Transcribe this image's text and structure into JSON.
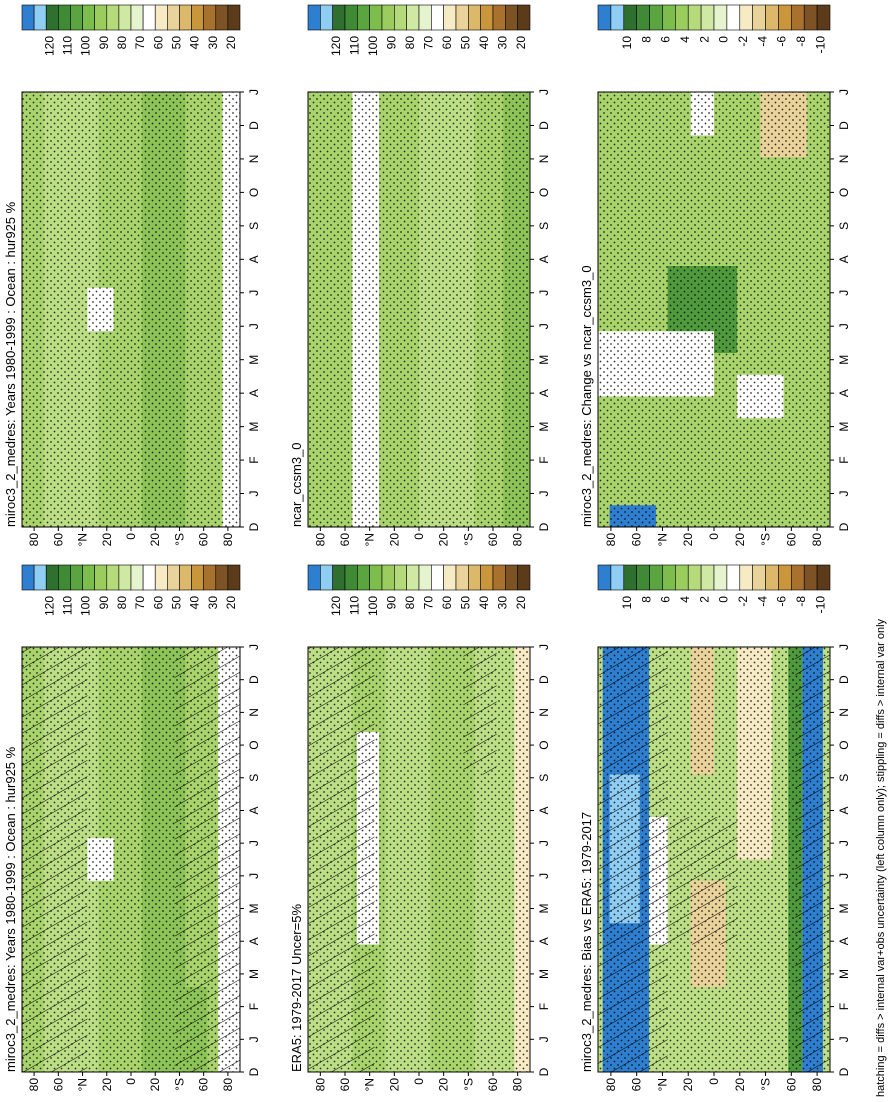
{
  "panels": [
    {
      "title": "miroc3_2_medres: Years 1980-1999 : Ocean : hur925 %",
      "colorbar_labels": [
        "120",
        "110",
        "100",
        "90",
        "80",
        "70",
        "60",
        "50",
        "40",
        "30",
        "20"
      ]
    },
    {
      "title": "miroc3_2_medres: Years 1980-1999 : Ocean : hur925 %",
      "colorbar_labels": [
        "120",
        "110",
        "100",
        "90",
        "80",
        "70",
        "60",
        "50",
        "40",
        "30",
        "20"
      ]
    },
    {
      "title": "ERA5: 1979-2017 Uncer=5%",
      "colorbar_labels": [
        "120",
        "110",
        "100",
        "90",
        "80",
        "70",
        "60",
        "50",
        "40",
        "30",
        "20"
      ]
    },
    {
      "title": "ncar_ccsm3_0",
      "colorbar_labels": [
        "120",
        "110",
        "100",
        "90",
        "80",
        "70",
        "60",
        "50",
        "40",
        "30",
        "20"
      ]
    },
    {
      "title": "miroc3_2_medres: Bias vs ERA5: 1979-2017",
      "colorbar_labels": [
        "10",
        "8",
        "6",
        "4",
        "2",
        "0",
        "-2",
        "-4",
        "-6",
        "-8",
        "-10"
      ]
    },
    {
      "title": "miroc3_2_medres: Change vs ncar_ccsm3_0",
      "colorbar_labels": [
        "10",
        "8",
        "6",
        "4",
        "2",
        "0",
        "-2",
        "-4",
        "-6",
        "-8",
        "-10"
      ]
    }
  ],
  "lat_labels": [
    "80",
    "60",
    "°N",
    "20",
    "0",
    "20",
    "°S",
    "60",
    "80"
  ],
  "month_labels": [
    "D",
    "J",
    "F",
    "M",
    "A",
    "M",
    "J",
    "J",
    "A",
    "S",
    "O",
    "N",
    "D",
    "J"
  ],
  "footnote": "hatching = diffs > internal var+obs uncertainty (left column only); stippling = diffs > internal var only"
}
